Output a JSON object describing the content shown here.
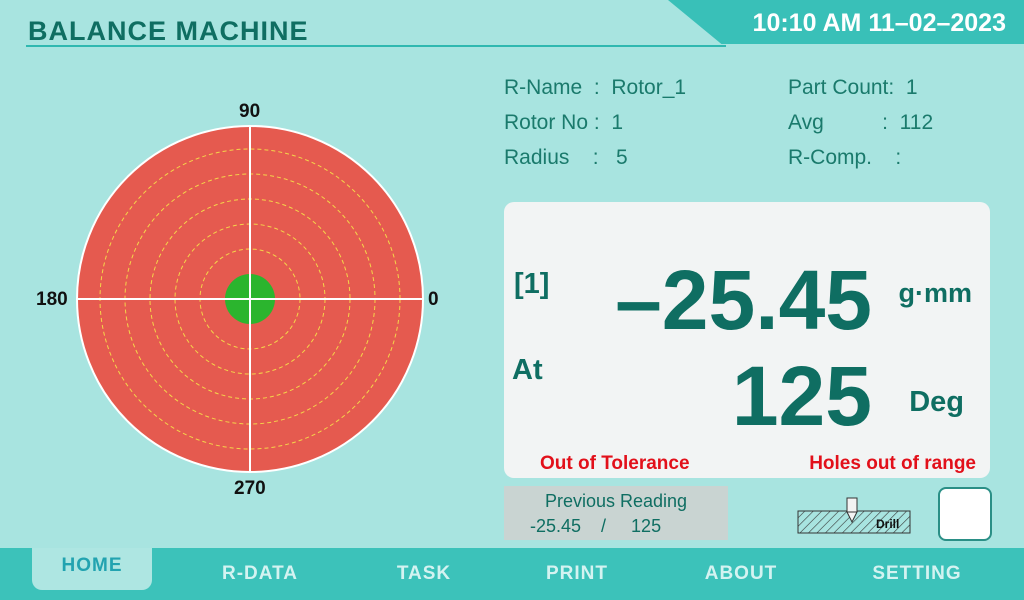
{
  "header": {
    "title": "BALANCE MACHINE",
    "datetime": "10:10 AM 11–02–2023"
  },
  "polar": {
    "labels": {
      "top": "90",
      "left": "180",
      "right": "0",
      "bottom": "270"
    },
    "target_color": "#e55a4f",
    "center_color": "#2bb52e"
  },
  "info": {
    "rname": "R-Name  :  Rotor_1",
    "rotor_no": "Rotor No :  1",
    "radius": "Radius    :   5",
    "part_count": "Part Count:  1",
    "avg": "Avg          :  112",
    "rcomp": "R-Comp.    :"
  },
  "result": {
    "index": "[1]",
    "value": "–25.45",
    "value_unit": "g·mm",
    "at_label": "At",
    "angle": "125",
    "angle_unit": "Deg",
    "status_left": "Out of Tolerance",
    "status_right": "Holes out of range"
  },
  "previous": {
    "title": "Previous Reading",
    "values": "-25.45    /     125"
  },
  "drill": {
    "label": "Drill"
  },
  "nav": {
    "items": [
      "HOME",
      "R-DATA",
      "TASK",
      "PRINT",
      "ABOUT",
      "SETTING"
    ],
    "active": "HOME"
  }
}
